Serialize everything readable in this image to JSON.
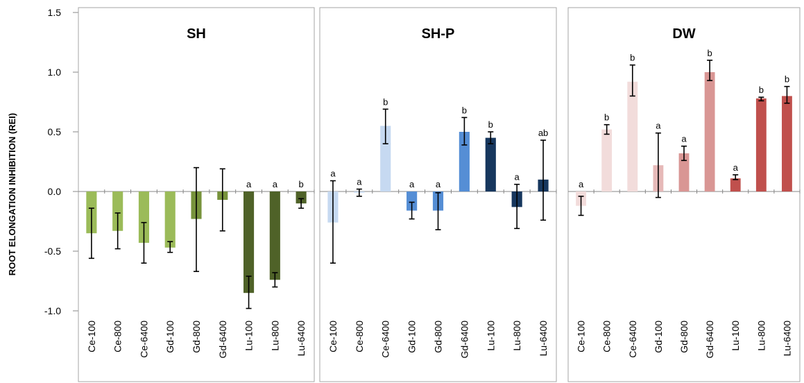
{
  "chart_data": {
    "type": "bar",
    "ylabel": "ROOT ELONGATION INHIBITION (REI)",
    "ylim": [
      -1.0,
      1.5
    ],
    "yticks": [
      "-1.0",
      "-0.5",
      "0.0",
      "0.5",
      "1.0",
      "1.5"
    ],
    "ytick_values": [
      -1.0,
      -0.5,
      0.0,
      0.5,
      1.0,
      1.5
    ],
    "grid": false,
    "panels": [
      {
        "title": "SH",
        "categories": [
          "Ce-100",
          "Ce-800",
          "Ce-6400",
          "Gd-100",
          "Gd-800",
          "Gd-6400",
          "Lu-100",
          "Lu-800",
          "Lu-6400"
        ],
        "values": [
          -0.35,
          -0.33,
          -0.43,
          -0.47,
          -0.23,
          -0.07,
          -0.85,
          -0.74,
          -0.1
        ],
        "err_low": [
          -0.56,
          -0.48,
          -0.6,
          -0.51,
          -0.67,
          -0.33,
          -0.98,
          -0.8,
          -0.14
        ],
        "err_high": [
          -0.14,
          -0.18,
          -0.26,
          -0.42,
          0.2,
          0.19,
          -0.71,
          -0.68,
          -0.06
        ],
        "letters": [
          "",
          "",
          "",
          "",
          "",
          "",
          "a",
          "a",
          "b"
        ],
        "colors": [
          "#9bbb59",
          "#9bbb59",
          "#9bbb59",
          "#9bbb59",
          "#77933c",
          "#77933c",
          "#4f6228",
          "#4f6228",
          "#4f6228"
        ]
      },
      {
        "title": "SH-P",
        "categories": [
          "Ce-100",
          "Ce-800",
          "Ce-6400",
          "Gd-100",
          "Gd-800",
          "Gd-6400",
          "Lu-100",
          "Lu-800",
          "Lu-6400"
        ],
        "values": [
          -0.26,
          -0.01,
          0.55,
          -0.16,
          -0.16,
          0.5,
          0.45,
          -0.13,
          0.1
        ],
        "err_low": [
          -0.6,
          -0.04,
          0.4,
          -0.23,
          -0.32,
          0.39,
          0.4,
          -0.31,
          -0.24
        ],
        "err_high": [
          0.09,
          0.02,
          0.69,
          -0.09,
          -0.01,
          0.62,
          0.5,
          0.06,
          0.43
        ],
        "letters": [
          "a",
          "a",
          "b",
          "a",
          "a",
          "b",
          "b",
          "a",
          "ab"
        ],
        "colors": [
          "#c6d9f1",
          "#c6d9f1",
          "#c6d9f1",
          "#558ed5",
          "#558ed5",
          "#558ed5",
          "#17375e",
          "#17375e",
          "#17375e"
        ]
      },
      {
        "title": "DW",
        "categories": [
          "Ce-100",
          "Ce-800",
          "Ce-6400",
          "Gd-100",
          "Gd-800",
          "Gd-6400",
          "Lu-100",
          "Lu-800",
          "Lu-6400"
        ],
        "values": [
          -0.12,
          0.52,
          0.92,
          0.22,
          0.32,
          1.0,
          0.11,
          0.78,
          0.8
        ],
        "err_low": [
          -0.2,
          0.48,
          0.8,
          -0.05,
          0.26,
          0.93,
          0.1,
          0.76,
          0.74
        ],
        "err_high": [
          -0.04,
          0.56,
          1.06,
          0.49,
          0.38,
          1.1,
          0.14,
          0.79,
          0.88
        ],
        "letters": [
          "a",
          "b",
          "b",
          "a",
          "a",
          "b",
          "a",
          "b",
          "b"
        ],
        "colors": [
          "#f2dcdb",
          "#f2dcdb",
          "#f2dcdb",
          "#e6b9b8",
          "#d99694",
          "#d99694",
          "#c0504d",
          "#c0504d",
          "#c0504d"
        ]
      }
    ]
  }
}
